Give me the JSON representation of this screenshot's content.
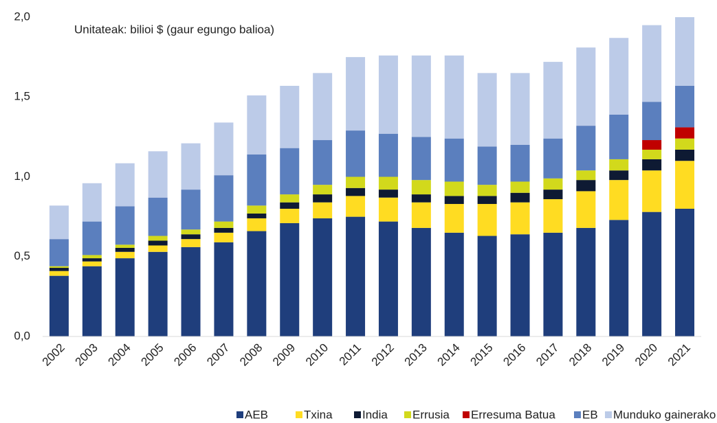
{
  "chart_data": {
    "type": "stacked_bar",
    "annotation": "Unitateak: bilioi $ (gaur egungo balioa)",
    "categories": [
      "2002",
      "2003",
      "2004",
      "2005",
      "2006",
      "2007",
      "2008",
      "2009",
      "2010",
      "2011",
      "2012",
      "2013",
      "2014",
      "2015",
      "2016",
      "2017",
      "2018",
      "2019",
      "2020",
      "2021"
    ],
    "series": [
      {
        "name": "AEB",
        "color": "#1f3e7c",
        "values": [
          0.38,
          0.44,
          0.49,
          0.53,
          0.56,
          0.59,
          0.66,
          0.71,
          0.74,
          0.75,
          0.72,
          0.68,
          0.65,
          0.63,
          0.64,
          0.65,
          0.68,
          0.73,
          0.78,
          0.8
        ]
      },
      {
        "name": "Txina",
        "color": "#ffdc22",
        "values": [
          0.03,
          0.03,
          0.04,
          0.04,
          0.05,
          0.06,
          0.08,
          0.09,
          0.1,
          0.13,
          0.15,
          0.16,
          0.18,
          0.2,
          0.2,
          0.21,
          0.23,
          0.25,
          0.26,
          0.3
        ]
      },
      {
        "name": "India",
        "color": "#0e1a33",
        "values": [
          0.02,
          0.02,
          0.025,
          0.03,
          0.03,
          0.03,
          0.03,
          0.04,
          0.05,
          0.05,
          0.05,
          0.05,
          0.05,
          0.05,
          0.06,
          0.06,
          0.07,
          0.06,
          0.07,
          0.07
        ]
      },
      {
        "name": "Errusia",
        "color": "#d2d91c",
        "values": [
          0.01,
          0.02,
          0.02,
          0.03,
          0.03,
          0.04,
          0.05,
          0.05,
          0.06,
          0.07,
          0.08,
          0.09,
          0.09,
          0.07,
          0.07,
          0.07,
          0.06,
          0.07,
          0.06,
          0.07
        ]
      },
      {
        "name": "Erresuma Batua",
        "color": "#c00000",
        "values": [
          0,
          0,
          0,
          0,
          0,
          0,
          0,
          0,
          0,
          0,
          0,
          0,
          0,
          0,
          0,
          0,
          0,
          0,
          0.06,
          0.07
        ]
      },
      {
        "name": "EB",
        "color": "#5b7fbe",
        "values": [
          0.17,
          0.21,
          0.24,
          0.24,
          0.25,
          0.29,
          0.32,
          0.29,
          0.28,
          0.29,
          0.27,
          0.27,
          0.27,
          0.24,
          0.23,
          0.25,
          0.28,
          0.28,
          0.24,
          0.26
        ]
      },
      {
        "name": "Munduko gainerako herrialdeak",
        "color": "#bccbe8",
        "values": [
          0.21,
          0.24,
          0.27,
          0.29,
          0.29,
          0.33,
          0.37,
          0.39,
          0.42,
          0.46,
          0.49,
          0.51,
          0.52,
          0.46,
          0.45,
          0.48,
          0.49,
          0.48,
          0.48,
          0.43
        ]
      }
    ],
    "ylim": [
      0,
      2
    ],
    "yticks": [
      {
        "value": 0,
        "label": "0,0"
      },
      {
        "value": 0.5,
        "label": "0,5"
      },
      {
        "value": 1,
        "label": "1,0"
      },
      {
        "value": 1.5,
        "label": "1,5"
      },
      {
        "value": 2,
        "label": "2,0"
      }
    ],
    "legend": "bottom"
  }
}
